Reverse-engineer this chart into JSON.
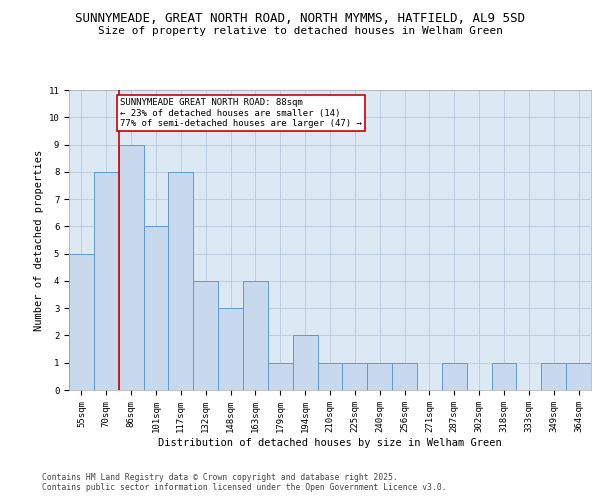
{
  "title1": "SUNNYMEADE, GREAT NORTH ROAD, NORTH MYMMS, HATFIELD, AL9 5SD",
  "title2": "Size of property relative to detached houses in Welham Green",
  "xlabel": "Distribution of detached houses by size in Welham Green",
  "ylabel": "Number of detached properties",
  "categories": [
    "55sqm",
    "70sqm",
    "86sqm",
    "101sqm",
    "117sqm",
    "132sqm",
    "148sqm",
    "163sqm",
    "179sqm",
    "194sqm",
    "210sqm",
    "225sqm",
    "240sqm",
    "256sqm",
    "271sqm",
    "287sqm",
    "302sqm",
    "318sqm",
    "333sqm",
    "349sqm",
    "364sqm"
  ],
  "values": [
    5,
    8,
    9,
    6,
    8,
    4,
    3,
    4,
    1,
    2,
    1,
    1,
    1,
    1,
    0,
    1,
    0,
    1,
    0,
    1,
    1
  ],
  "bar_color": "#c8d9ee",
  "bar_edge_color": "#5b9bd5",
  "highlight_index": 2,
  "highlight_line_color": "#cc0000",
  "annotation_text": "SUNNYMEADE GREAT NORTH ROAD: 88sqm\n← 23% of detached houses are smaller (14)\n77% of semi-detached houses are larger (47) →",
  "annotation_box_edge": "#cc0000",
  "ylim": [
    0,
    11
  ],
  "yticks": [
    0,
    1,
    2,
    3,
    4,
    5,
    6,
    7,
    8,
    9,
    10,
    11
  ],
  "background_color": "#ffffff",
  "plot_bg_color": "#dce9f5",
  "grid_color": "#b0c4d8",
  "footer1": "Contains HM Land Registry data © Crown copyright and database right 2025.",
  "footer2": "Contains public sector information licensed under the Open Government Licence v3.0.",
  "title_fontsize": 9,
  "subtitle_fontsize": 8,
  "axis_label_fontsize": 7.5,
  "tick_fontsize": 6.5,
  "annotation_fontsize": 6.5,
  "footer_fontsize": 5.8
}
